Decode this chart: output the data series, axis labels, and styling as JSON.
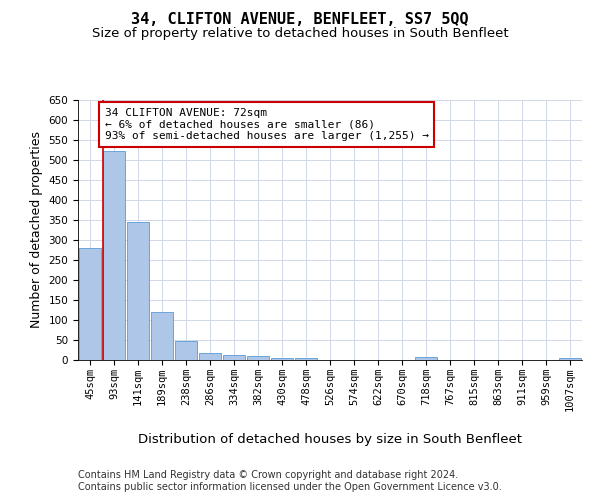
{
  "title": "34, CLIFTON AVENUE, BENFLEET, SS7 5QQ",
  "subtitle": "Size of property relative to detached houses in South Benfleet",
  "xlabel": "Distribution of detached houses by size in South Benfleet",
  "ylabel": "Number of detached properties",
  "categories": [
    "45sqm",
    "93sqm",
    "141sqm",
    "189sqm",
    "238sqm",
    "286sqm",
    "334sqm",
    "382sqm",
    "430sqm",
    "478sqm",
    "526sqm",
    "574sqm",
    "622sqm",
    "670sqm",
    "718sqm",
    "767sqm",
    "815sqm",
    "863sqm",
    "911sqm",
    "959sqm",
    "1007sqm"
  ],
  "values": [
    280,
    523,
    345,
    120,
    48,
    17,
    12,
    9,
    6,
    4,
    0,
    0,
    0,
    0,
    7,
    0,
    0,
    0,
    0,
    0,
    6
  ],
  "bar_color": "#aec6e8",
  "bar_edge_color": "#5b9bd5",
  "annotation_line1": "34 CLIFTON AVENUE: 72sqm",
  "annotation_line2": "← 6% of detached houses are smaller (86)",
  "annotation_line3": "93% of semi-detached houses are larger (1,255) →",
  "annotation_box_color": "#ffffff",
  "annotation_box_edge_color": "#cc0000",
  "vline_color": "#cc0000",
  "ylim": [
    0,
    650
  ],
  "yticks": [
    0,
    50,
    100,
    150,
    200,
    250,
    300,
    350,
    400,
    450,
    500,
    550,
    600,
    650
  ],
  "footer_line1": "Contains HM Land Registry data © Crown copyright and database right 2024.",
  "footer_line2": "Contains public sector information licensed under the Open Government Licence v3.0.",
  "background_color": "#ffffff",
  "grid_color": "#d0d8e8",
  "title_fontsize": 11,
  "subtitle_fontsize": 9.5,
  "ylabel_fontsize": 9,
  "xlabel_fontsize": 9.5,
  "tick_fontsize": 7.5,
  "annotation_fontsize": 8,
  "footer_fontsize": 7
}
